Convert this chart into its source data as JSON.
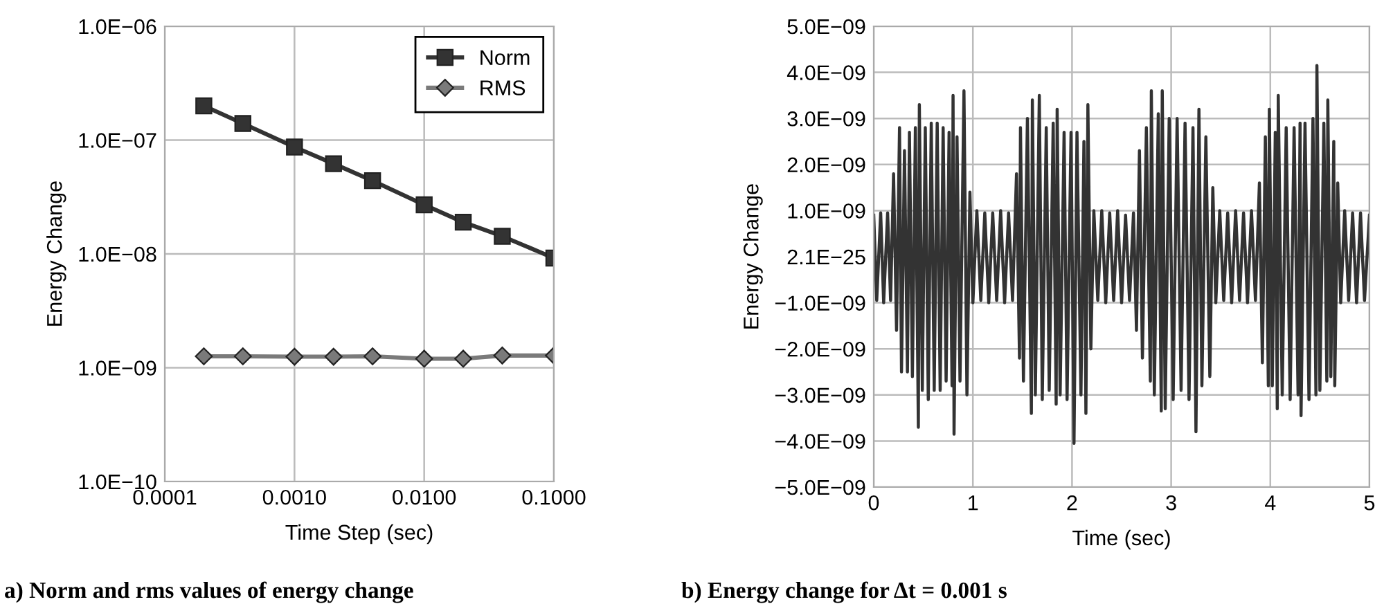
{
  "chart_data": [
    {
      "type": "line",
      "title": "a) Norm and rms values of energy change",
      "xlabel": "Time Step (sec)",
      "ylabel": "Energy Change",
      "log": "xy",
      "grid": true,
      "legend": "top right",
      "x": [
        0.0002,
        0.0004,
        0.001,
        0.002,
        0.004,
        0.01,
        0.02,
        0.04,
        0.1
      ],
      "series": [
        {
          "name": "Norm",
          "color": "#333333",
          "marker": "square",
          "values": [
            2e-07,
            1.4e-07,
            8.7e-08,
            6.2e-08,
            4.4e-08,
            2.7e-08,
            1.9e-08,
            1.43e-08,
            9.2e-09
          ]
        },
        {
          "name": "RMS",
          "color": "#7a7a7a",
          "marker": "diamond",
          "values": [
            1.26e-09,
            1.26e-09,
            1.25e-09,
            1.25e-09,
            1.26e-09,
            1.2e-09,
            1.2e-09,
            1.28e-09,
            1.28e-09
          ]
        }
      ],
      "xlim": [
        0.0001,
        0.1
      ],
      "ylim": [
        1e-10,
        1e-06
      ],
      "xticks": [
        {
          "value": 0.0001,
          "label": "0.0001"
        },
        {
          "value": 0.001,
          "label": "0.0010"
        },
        {
          "value": 0.01,
          "label": "0.0100"
        },
        {
          "value": 0.1,
          "label": "0.1000"
        }
      ],
      "yticks": [
        {
          "value": 1e-10,
          "label": "1.0E−10"
        },
        {
          "value": 1e-09,
          "label": "1.0E−09"
        },
        {
          "value": 1e-08,
          "label": "1.0E−08"
        },
        {
          "value": 1e-07,
          "label": "1.0E−07"
        },
        {
          "value": 1e-06,
          "label": "1.0E−06"
        }
      ]
    },
    {
      "type": "line",
      "title": "b) Energy change for Δt = 0.001 s",
      "xlabel": "Time (sec)",
      "ylabel": "Energy Change",
      "grid": true,
      "marker": "none",
      "x": [
        0.0,
        0.03,
        0.07,
        0.1,
        0.14,
        0.17,
        0.2,
        0.23,
        0.26,
        0.28,
        0.31,
        0.34,
        0.36,
        0.39,
        0.42,
        0.45,
        0.46,
        0.49,
        0.52,
        0.55,
        0.58,
        0.61,
        0.64,
        0.67,
        0.7,
        0.73,
        0.76,
        0.79,
        0.8,
        0.81,
        0.84,
        0.87,
        0.91,
        0.94,
        0.97,
        1.0,
        1.04,
        1.08,
        1.12,
        1.16,
        1.2,
        1.24,
        1.28,
        1.32,
        1.36,
        1.4,
        1.44,
        1.47,
        1.48,
        1.51,
        1.55,
        1.59,
        1.6,
        1.63,
        1.67,
        1.7,
        1.74,
        1.77,
        1.81,
        1.84,
        1.85,
        1.88,
        1.92,
        1.95,
        1.99,
        2.02,
        2.05,
        2.09,
        2.12,
        2.14,
        2.16,
        2.19,
        2.22,
        2.26,
        2.3,
        2.34,
        2.38,
        2.42,
        2.46,
        2.5,
        2.54,
        2.58,
        2.62,
        2.65,
        2.68,
        2.71,
        2.75,
        2.79,
        2.8,
        2.83,
        2.87,
        2.9,
        2.91,
        2.94,
        2.98,
        3.02,
        3.06,
        3.1,
        3.14,
        3.18,
        3.22,
        3.25,
        3.28,
        3.31,
        3.35,
        3.39,
        3.42,
        3.45,
        3.49,
        3.53,
        3.57,
        3.61,
        3.65,
        3.69,
        3.73,
        3.77,
        3.81,
        3.85,
        3.89,
        3.92,
        3.95,
        3.98,
        3.99,
        4.02,
        4.05,
        4.07,
        4.08,
        4.12,
        4.16,
        4.2,
        4.24,
        4.28,
        4.3,
        4.31,
        4.35,
        4.39,
        4.43,
        4.46,
        4.47,
        4.5,
        4.54,
        4.57,
        4.58,
        4.61,
        4.64,
        4.65,
        4.68,
        4.71,
        4.75,
        4.79,
        4.83,
        4.87,
        4.91,
        4.95,
        5.0
      ],
      "series": [
        {
          "color": "#333333",
          "values": [
            9e-10,
            -9.5e-10,
            9.5e-10,
            -1e-09,
            9.5e-10,
            -9.5e-10,
            1.8e-09,
            -1.6e-09,
            2.8e-09,
            -2.5e-09,
            2.3e-09,
            -2.5e-09,
            2.7e-09,
            -2.6e-09,
            2.8e-09,
            -3.7e-09,
            3.3e-09,
            -2.9e-09,
            2.8e-09,
            -3.1e-09,
            2.9e-09,
            -2.9e-09,
            2.9e-09,
            -2.9e-09,
            2.8e-09,
            -2.7e-09,
            2.7e-09,
            -2.8e-09,
            3.5e-09,
            -3.85e-09,
            2.6e-09,
            -2.7e-09,
            3.6e-09,
            -3e-09,
            1.4e-09,
            -1e-09,
            1e-09,
            -9.5e-10,
            9.5e-10,
            -1e-09,
            9.5e-10,
            -9.5e-10,
            1e-09,
            -1e-09,
            9.5e-10,
            -9.5e-10,
            1.8e-09,
            -2.2e-09,
            2.8e-09,
            -2.7e-09,
            3e-09,
            -3.4e-09,
            3.4e-09,
            -3e-09,
            3.5e-09,
            -3.1e-09,
            2.8e-09,
            -2.9e-09,
            2.9e-09,
            -3.2e-09,
            3.2e-09,
            -3e-09,
            2.7e-09,
            -3.1e-09,
            2.7e-09,
            -4.05e-09,
            2.7e-09,
            -3e-09,
            2.5e-09,
            -3.4e-09,
            3.3e-09,
            -2e-09,
            1e-09,
            -9.5e-10,
            1e-09,
            -1e-09,
            9.5e-10,
            -9.5e-10,
            1e-09,
            -1e-09,
            9e-10,
            -9.5e-10,
            9.5e-10,
            -1.6e-09,
            2.3e-09,
            -2.2e-09,
            2.8e-09,
            -2.7e-09,
            3.6e-09,
            -3e-09,
            3.1e-09,
            -3.35e-09,
            3.6e-09,
            -3.3e-09,
            3e-09,
            -3.1e-09,
            3e-09,
            -2.9e-09,
            2.9e-09,
            -3.1e-09,
            2.8e-09,
            -3.8e-09,
            3.2e-09,
            -2.8e-09,
            2.6e-09,
            -2.6e-09,
            1.5e-09,
            -1e-09,
            1e-09,
            -9.5e-10,
            9.5e-10,
            -1e-09,
            1e-09,
            -9.5e-10,
            9.5e-10,
            -1e-09,
            1e-09,
            -9.5e-10,
            1.6e-09,
            -2.3e-09,
            2.6e-09,
            -2.8e-09,
            3.2e-09,
            -2.8e-09,
            2.7e-09,
            -3.3e-09,
            3.5e-09,
            -3e-09,
            2.8e-09,
            -3.1e-09,
            2.8e-09,
            -3e-09,
            2.9e-09,
            -3.45e-09,
            2.9e-09,
            -3.1e-09,
            3e-09,
            -3e-09,
            4.15e-09,
            -2.9e-09,
            2.9e-09,
            -2.7e-09,
            3.4e-09,
            -2.6e-09,
            2.5e-09,
            -2.8e-09,
            1.6e-09,
            -1e-09,
            1e-09,
            -9.5e-10,
            9.5e-10,
            -1e-09,
            9.5e-10,
            -9.5e-10,
            9e-10
          ]
        }
      ],
      "xlim": [
        0,
        5
      ],
      "ylim": [
        -5e-09,
        5e-09
      ],
      "xticks": [
        0,
        1,
        2,
        3,
        4,
        5
      ],
      "yticks": [
        {
          "value": -5e-09,
          "label": "−5.0E−09"
        },
        {
          "value": -4e-09,
          "label": "−4.0E−09"
        },
        {
          "value": -3e-09,
          "label": "−3.0E−09"
        },
        {
          "value": -2e-09,
          "label": "−2.0E−09"
        },
        {
          "value": -1e-09,
          "label": "−1.0E−09"
        },
        {
          "value": 0,
          "label": "2.1E−25"
        },
        {
          "value": 1e-09,
          "label": "1.0E−09"
        },
        {
          "value": 2e-09,
          "label": "2.0E−09"
        },
        {
          "value": 3e-09,
          "label": "3.0E−09"
        },
        {
          "value": 4e-09,
          "label": "4.0E−09"
        },
        {
          "value": 5e-09,
          "label": "5.0E−09"
        }
      ]
    }
  ]
}
